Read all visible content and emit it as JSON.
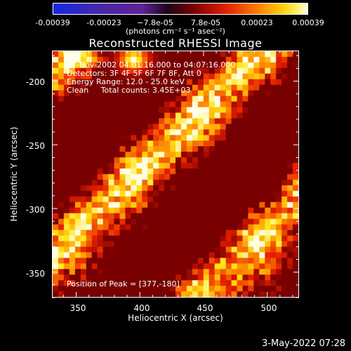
{
  "colorbar": {
    "ticks": [
      "-0.00039",
      "-0.00023",
      "−7.8e-05",
      "7.8e-05",
      "0.00023",
      "0.00039"
    ],
    "unit": "(photons cm⁻² s⁻¹ asec⁻²)"
  },
  "chart_data": {
    "type": "heatmap",
    "title": "Reconstructed RHESSI Image",
    "xlabel": "Heliocentric X (arcsec)",
    "ylabel": "Heliocentric Y (arcsec)",
    "xlim": [
      331,
      525
    ],
    "ylim": [
      -370,
      -176
    ],
    "x_ticks": [
      350,
      400,
      450,
      500
    ],
    "y_ticks": [
      -200,
      -250,
      -300,
      -350
    ],
    "colorscale": "RHESSI blue-purple-red-yellow-white",
    "value_range": [
      -0.00039,
      0.00039
    ],
    "annotations": [
      "17-Nov-2002 04:01:16.000 to 04:07:16.000",
      "Detectors: 3F 4F 5F 6F 7F 8F, Att 0",
      "Energy Range: 12.0 - 25.0 keV",
      "Clean     Total counts: 3.45E+03"
    ],
    "peak_label": "Position of Peak = [377,-180]",
    "peak_position": [
      377,
      -180
    ]
  },
  "timestamp": "3-May-2022 07:28"
}
